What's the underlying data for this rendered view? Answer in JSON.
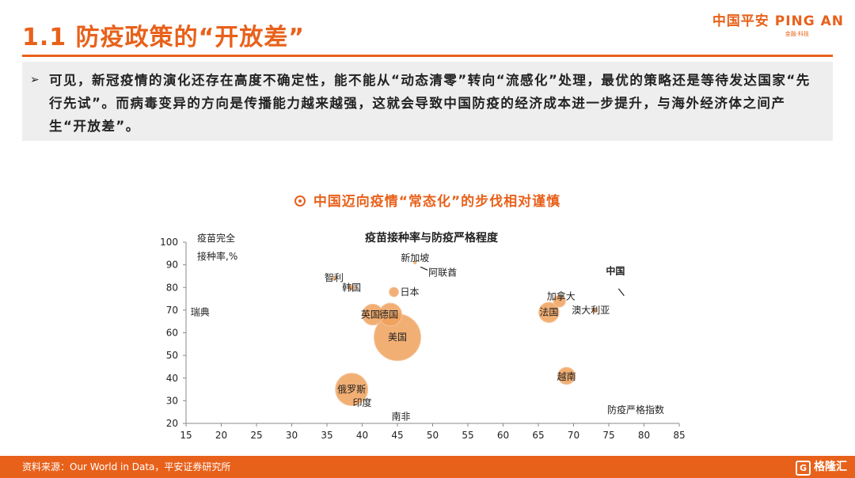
{
  "header": {
    "title": "1.1 防疫政策的“开放差”",
    "logo_main": "中国平安 PING AN",
    "logo_sub": "金融·科技"
  },
  "summary": {
    "bullet": "➢",
    "text": "可见，新冠疫情的演化还存在高度不确定性，能不能从“动态清零”转向“流感化”处理，最优的策略还是等待发达国家“先行先试”。而病毒变异的方向是传播能力越来越强，这就会导致中国防疫的经济成本进一步提升，与海外经济体之间产生“开放差”。"
  },
  "chart_heading": "中国迈向疫情“常态化”的步伐相对谨慎",
  "chart_data": {
    "type": "scatter",
    "bubble": true,
    "title": "疫苗接种率与防疫严格程度",
    "xlabel": "防疫严格指数",
    "ylabel_lines": [
      "疫苗完全",
      "接种率,%"
    ],
    "xlim": [
      15,
      85
    ],
    "ylim": [
      20,
      100
    ],
    "xticks": [
      15,
      20,
      25,
      30,
      35,
      40,
      45,
      50,
      55,
      60,
      65,
      70,
      75,
      80,
      85
    ],
    "yticks": [
      20,
      30,
      40,
      50,
      60,
      70,
      80,
      90,
      100
    ],
    "grid": false,
    "color": "#f0a15c",
    "points": [
      {
        "name": "瑞典",
        "x": 17,
        "y": 69,
        "size": 0
      },
      {
        "name": "智利",
        "x": 36,
        "y": 84,
        "size": 0.5
      },
      {
        "name": "韩国",
        "x": 38.5,
        "y": 80,
        "size": 1
      },
      {
        "name": "新加坡",
        "x": 47.5,
        "y": 91,
        "size": 0.3
      },
      {
        "name": "阿联酋",
        "x": 48.5,
        "y": 88,
        "size": 0
      },
      {
        "name": "日本",
        "x": 44.5,
        "y": 78,
        "size": 3
      },
      {
        "name": "英国",
        "x": 41.5,
        "y": 68,
        "size": 15
      },
      {
        "name": "德国",
        "x": 44,
        "y": 68,
        "size": 18
      },
      {
        "name": "美国",
        "x": 45,
        "y": 58,
        "size": 75
      },
      {
        "name": "法国",
        "x": 66.5,
        "y": 69,
        "size": 14
      },
      {
        "name": "加拿大",
        "x": 68,
        "y": 74,
        "size": 5
      },
      {
        "name": "澳大利亚",
        "x": 73,
        "y": 70,
        "size": 1
      },
      {
        "name": "中国",
        "x": 76.5,
        "y": 76,
        "size": 0
      },
      {
        "name": "越南",
        "x": 69,
        "y": 41,
        "size": 10
      },
      {
        "name": "俄罗斯",
        "x": 38.5,
        "y": 35,
        "size": 36
      },
      {
        "name": "印度",
        "x": 40,
        "y": 29,
        "size": 0
      },
      {
        "name": "南非",
        "x": 45.5,
        "y": 23,
        "size": 0
      }
    ]
  },
  "footer": {
    "source": "资料来源：Our World in Data，平安证券研究所",
    "watermark": "格隆汇",
    "watermark_icon": "G"
  }
}
